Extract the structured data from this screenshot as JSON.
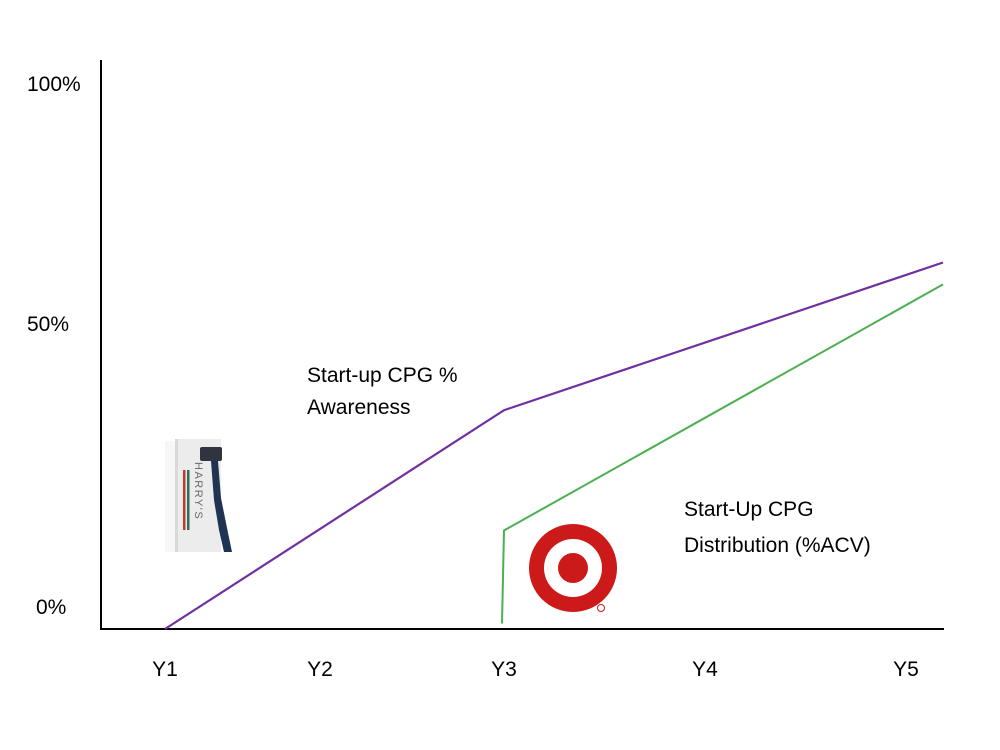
{
  "chart_data": {
    "type": "line",
    "categories": [
      "Y1",
      "Y2",
      "Y3",
      "Y4",
      "Y5"
    ],
    "y_ticks": [
      "100%",
      "50%",
      "0%"
    ],
    "ylim": [
      0,
      100
    ],
    "grid": false,
    "series": [
      {
        "color": "#7030a0",
        "points": [
          {
            "x": "Y1",
            "y": 0
          },
          {
            "x": "Y3",
            "y": 40
          },
          {
            "x": "Y5",
            "y": 67
          }
        ]
      },
      {
        "color": "#4caf50",
        "points": [
          {
            "x": "Y3",
            "y": 1
          },
          {
            "x": "Y3",
            "y": 18
          },
          {
            "x": "Y5",
            "y": 63
          }
        ]
      }
    ],
    "annotations": {
      "awareness": [
        "Start-up CPG %",
        "Awareness"
      ],
      "distribution": [
        "Start-Up CPG",
        "Distribution (%ACV)"
      ]
    }
  },
  "images": {
    "product_box_text": "HARRY'S",
    "retailer_logo": "target-bullseye-logo"
  }
}
